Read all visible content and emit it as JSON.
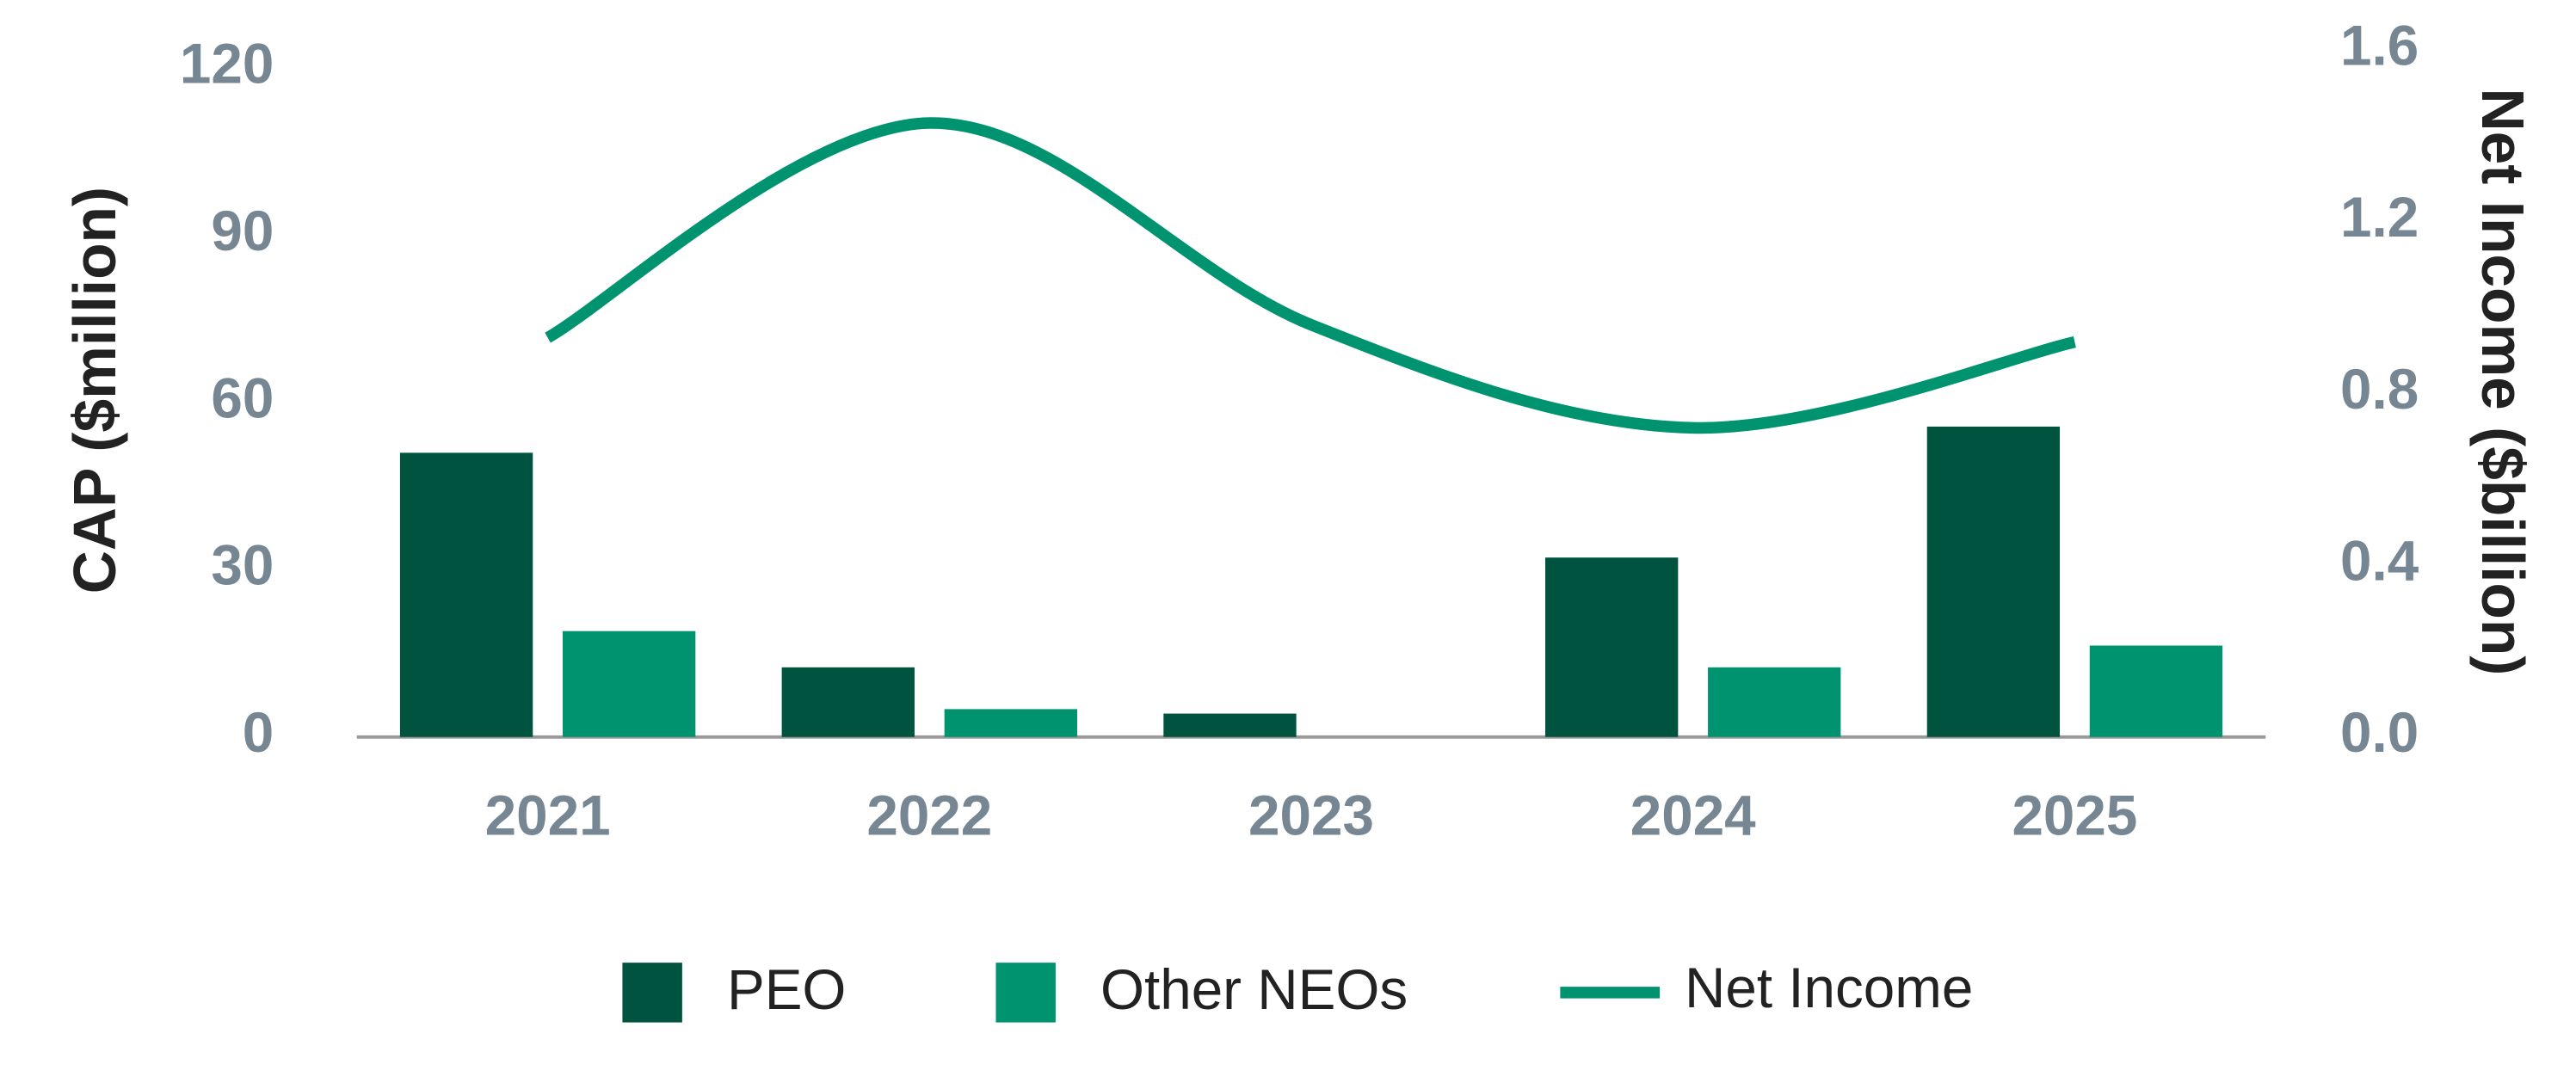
{
  "chart_data": {
    "type": "bar",
    "ylabel": "CAP ($million)",
    "y2label": "Net Income ($billion)",
    "categories": [
      "2021",
      "2022",
      "2023",
      "2024",
      "2025"
    ],
    "series": [
      {
        "name": "PEO",
        "color": "#00543f",
        "values": [
          51,
          12.5,
          4.2,
          32.2,
          55.7
        ]
      },
      {
        "name": "Other NEOs",
        "color": "#00936f",
        "values": [
          19,
          5,
          0,
          12.5,
          16.4
        ]
      },
      {
        "name": "Net Income",
        "type": "line",
        "axis": "y2",
        "color": "#00936f",
        "values": [
          0.93,
          1.43,
          0.96,
          0.72,
          0.92
        ]
      }
    ],
    "ylim": [
      0,
      120
    ],
    "yticks": [
      0,
      30,
      60,
      90,
      120
    ],
    "y2lim": [
      0,
      1.6
    ],
    "y2ticks": [
      {
        "value": 0,
        "label": "0.0"
      },
      0.4,
      0.8,
      1.2,
      1.6
    ],
    "legend": "bottom"
  }
}
